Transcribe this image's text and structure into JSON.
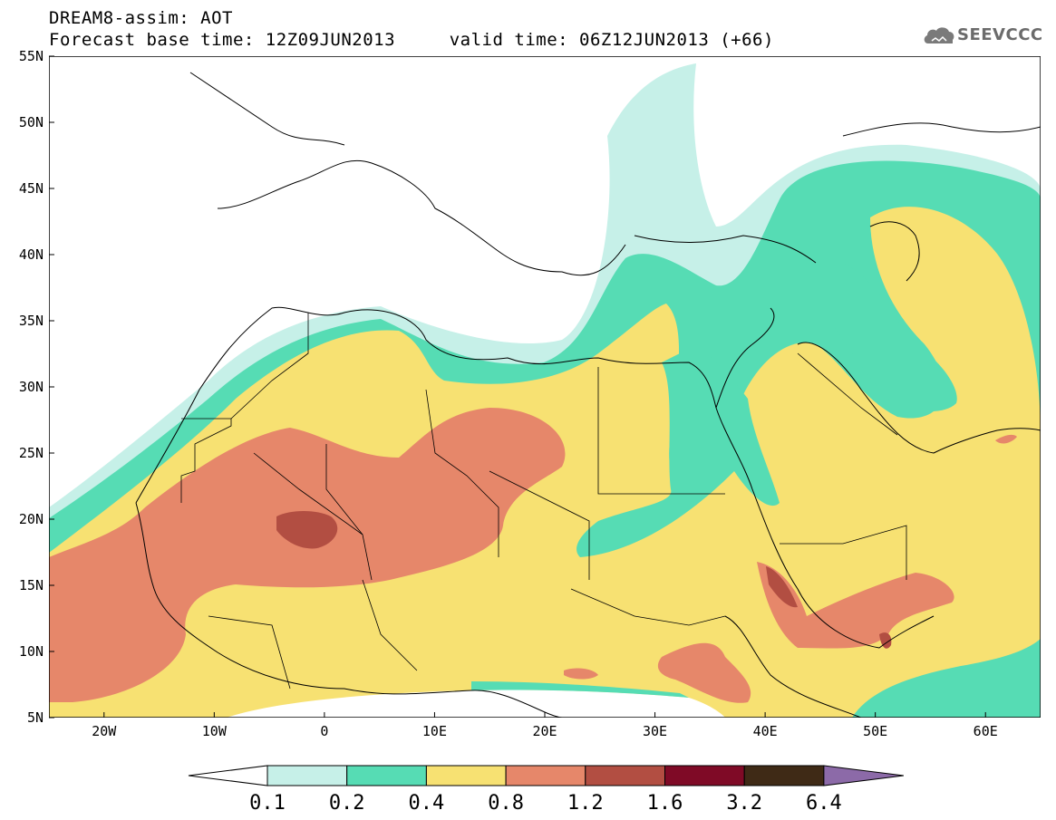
{
  "title": {
    "line1": "DREAM8-assim: AOT",
    "line2": "Forecast base time: 12Z09JUN2013     valid time: 06Z12JUN2013 (+66)"
  },
  "logo": {
    "text": "SEEVCCC",
    "icon": "cloud-icon"
  },
  "map": {
    "lon_range": [
      -25,
      65
    ],
    "lat_range": [
      5,
      55
    ],
    "lon_ticks": [
      {
        "value": -20,
        "label": "20W"
      },
      {
        "value": -10,
        "label": "10W"
      },
      {
        "value": 0,
        "label": "0"
      },
      {
        "value": 10,
        "label": "10E"
      },
      {
        "value": 20,
        "label": "20E"
      },
      {
        "value": 30,
        "label": "30E"
      },
      {
        "value": 40,
        "label": "40E"
      },
      {
        "value": 50,
        "label": "50E"
      },
      {
        "value": 60,
        "label": "60E"
      }
    ],
    "lat_ticks": [
      {
        "value": 55,
        "label": "55N"
      },
      {
        "value": 50,
        "label": "50N"
      },
      {
        "value": 45,
        "label": "45N"
      },
      {
        "value": 40,
        "label": "40N"
      },
      {
        "value": 35,
        "label": "35N"
      },
      {
        "value": 30,
        "label": "30N"
      },
      {
        "value": 25,
        "label": "25N"
      },
      {
        "value": 20,
        "label": "20N"
      },
      {
        "value": 15,
        "label": "15N"
      },
      {
        "value": 10,
        "label": "10N"
      },
      {
        "value": 5,
        "label": "5N"
      }
    ]
  },
  "colorbar": {
    "colors": [
      "#ffffff",
      "#c6f0e8",
      "#56dcb4",
      "#f7e172",
      "#e6876a",
      "#b24e42",
      "#7f0a26",
      "#3f2a16",
      "#8c6aa8"
    ],
    "labels": [
      "0.1",
      "0.2",
      "0.4",
      "0.8",
      "1.2",
      "1.6",
      "3.2",
      "6.4"
    ]
  }
}
